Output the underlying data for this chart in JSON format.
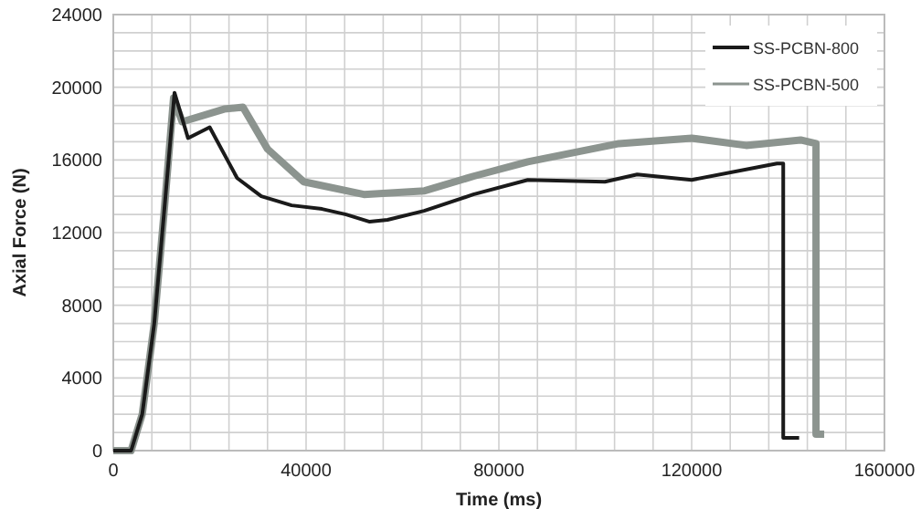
{
  "chart_data": {
    "type": "line",
    "xlabel": "Time (ms)",
    "ylabel": "Axial Force (N)",
    "xlim": [
      0,
      160000
    ],
    "xticks": [
      0,
      40000,
      80000,
      120000,
      160000
    ],
    "ylim": [
      0,
      24000
    ],
    "yticks": [
      0,
      4000,
      8000,
      12000,
      16000,
      20000,
      24000
    ],
    "grid": true,
    "legend": "top right",
    "line_style": "solid",
    "series": [
      {
        "name": "SS-PCBN-800",
        "color": "#1a1a1a",
        "x": [
          0,
          3700,
          6000,
          8500,
          10500,
          12700,
          15500,
          20000,
          25700,
          30700,
          37000,
          43300,
          48300,
          53200,
          56900,
          64500,
          74700,
          86000,
          102000,
          108700,
          120000,
          137700,
          139000,
          139000,
          142300
        ],
        "values": [
          0,
          0,
          2000,
          7000,
          13000,
          19700,
          17200,
          17800,
          15000,
          14000,
          13500,
          13300,
          13000,
          12600,
          12700,
          13200,
          14100,
          14900,
          14800,
          15200,
          14900,
          15800,
          15800,
          700,
          700
        ]
      },
      {
        "name": "SS-PCBN-500",
        "color": "#8c948f",
        "x": [
          0,
          3700,
          6000,
          8500,
          10500,
          12500,
          14300,
          23000,
          26900,
          32000,
          39500,
          52000,
          64600,
          74700,
          86000,
          104900,
          120000,
          131300,
          142600,
          145800,
          145800,
          147500
        ],
        "values": [
          0,
          0,
          2000,
          7000,
          13000,
          19400,
          18100,
          18800,
          18900,
          16600,
          14800,
          14100,
          14300,
          15100,
          15900,
          16900,
          17200,
          16800,
          17100,
          16900,
          900,
          900
        ]
      }
    ]
  }
}
